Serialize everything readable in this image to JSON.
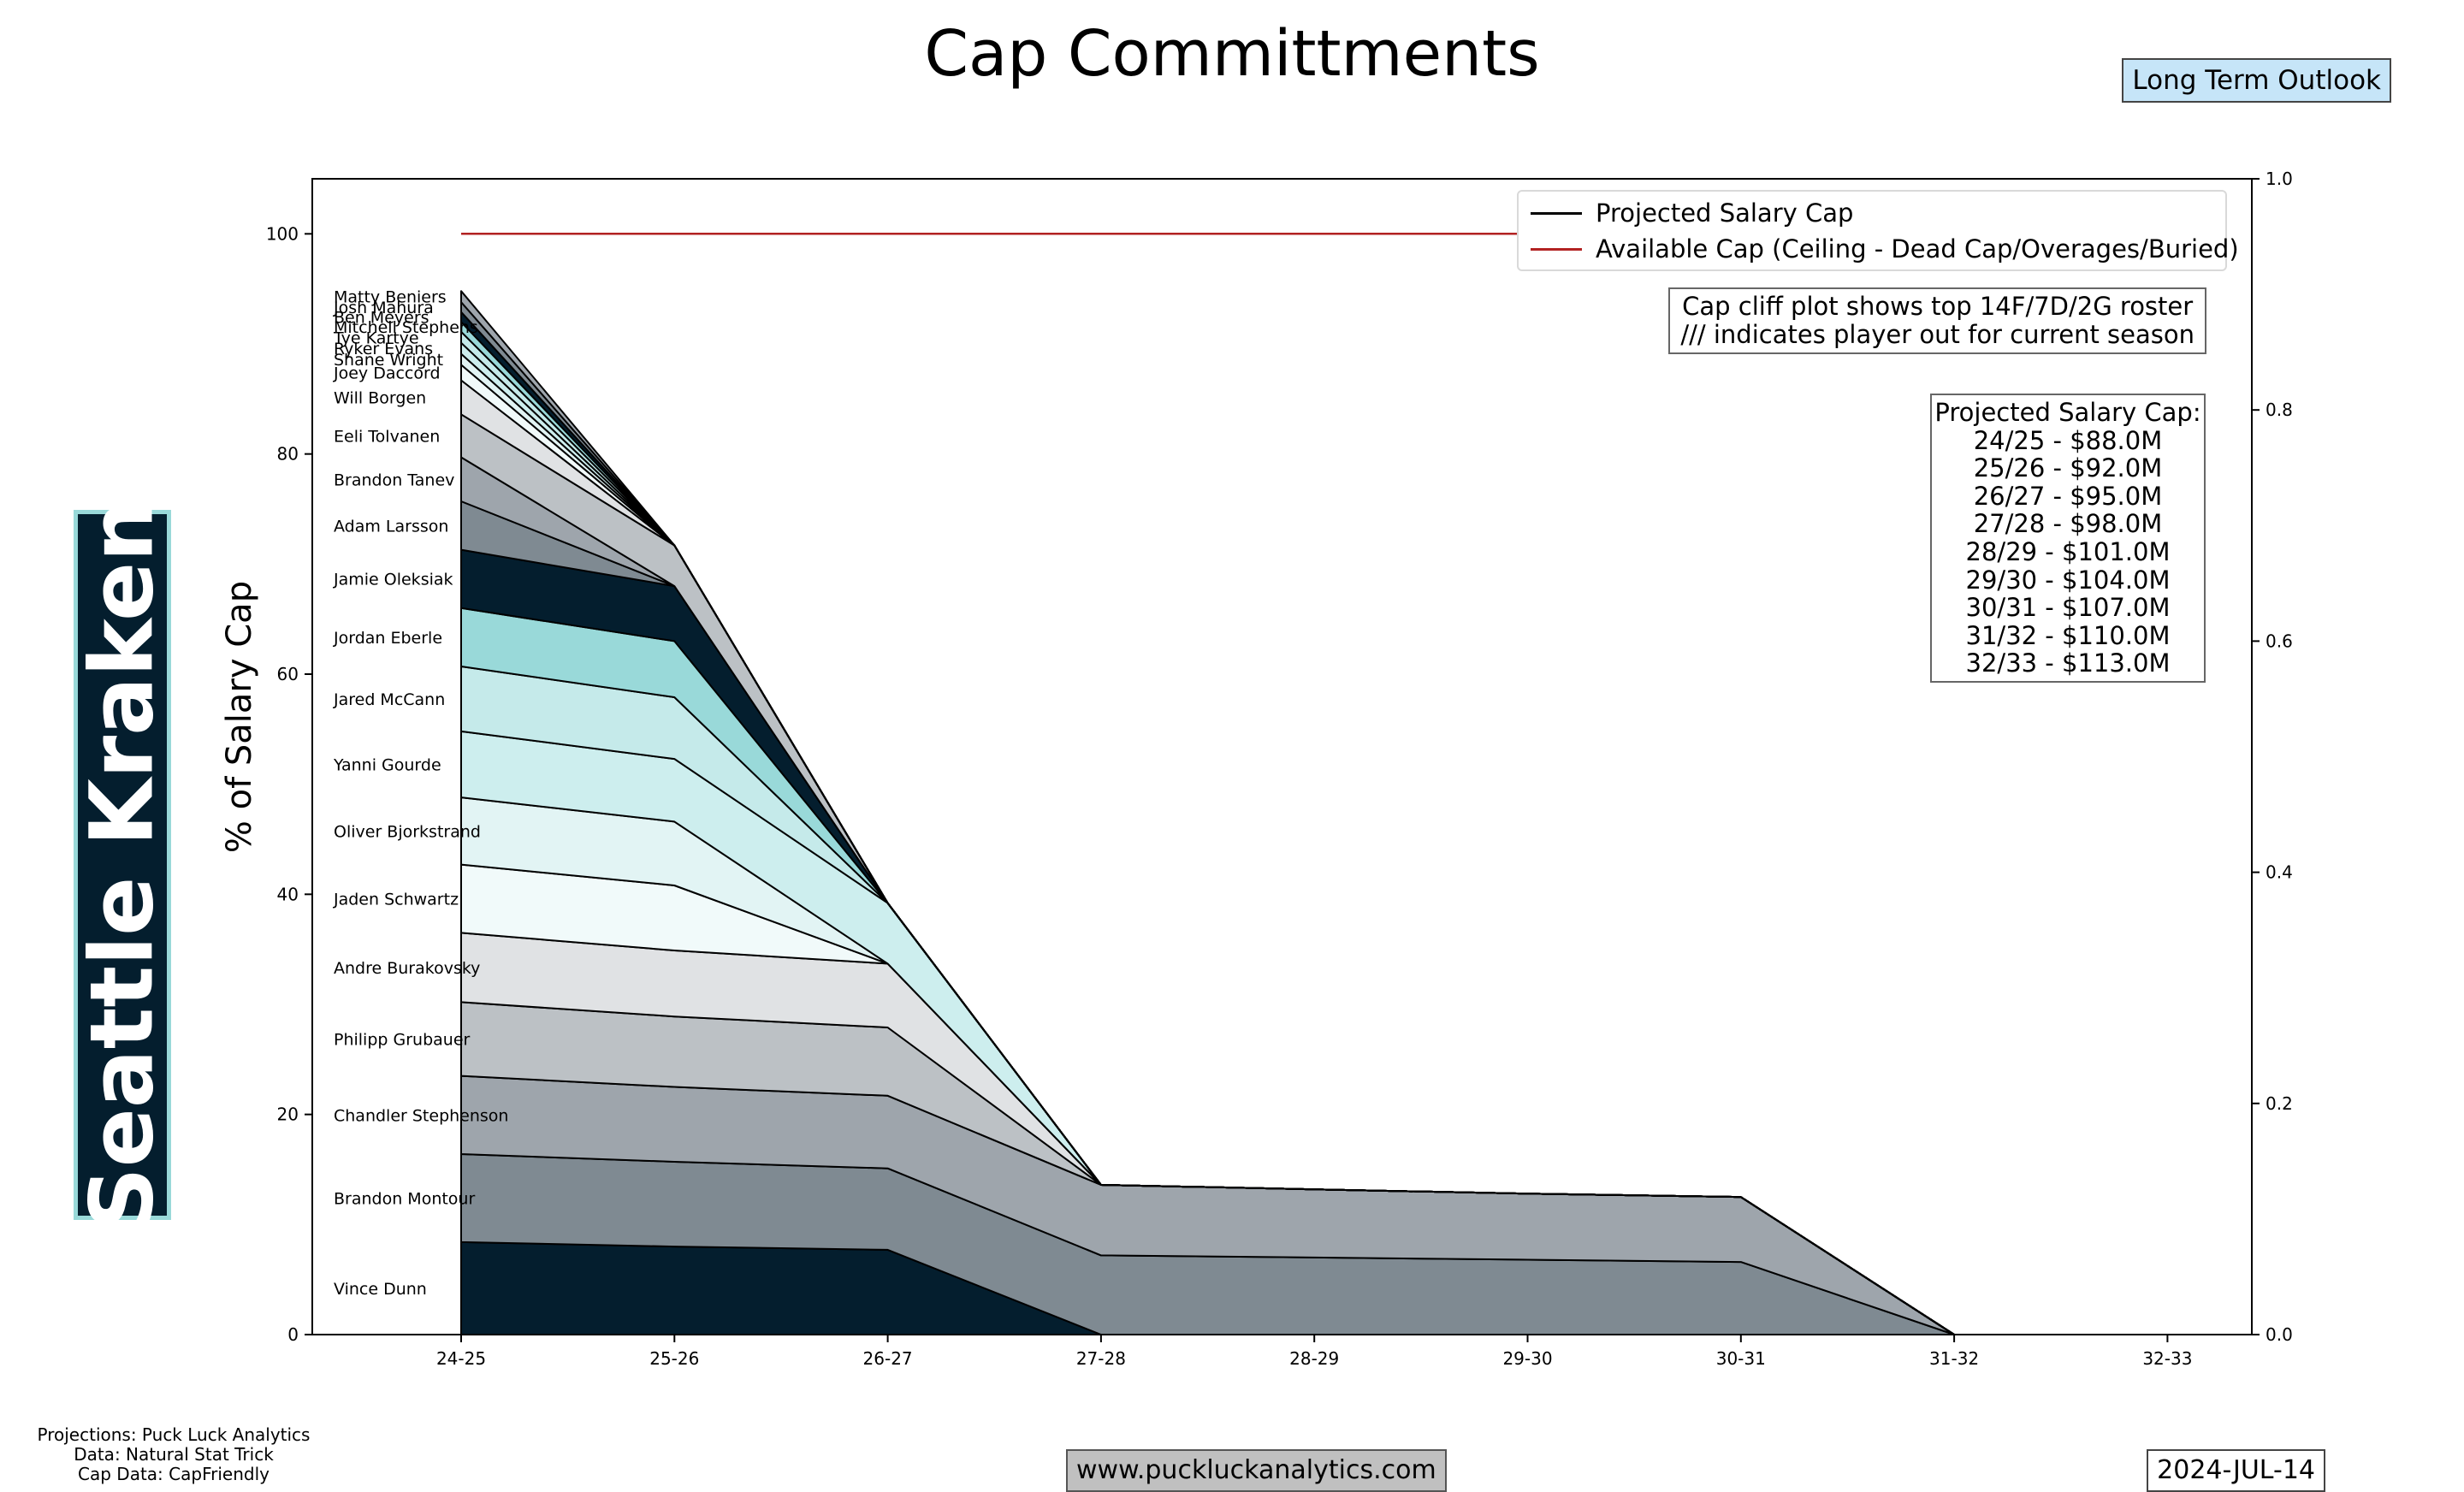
{
  "header": {
    "title": "Cap Committments",
    "outlook_badge": "Long Term Outlook"
  },
  "team": {
    "name": "Seattle Kraken"
  },
  "notes": {
    "line1": "Cap cliff plot shows top 14F/7D/2G roster",
    "line2": "/// indicates player out for current season"
  },
  "cap_projection": {
    "heading": "Projected Salary Cap:",
    "lines": [
      "24/25 - $88.0M",
      "25/26 - $92.0M",
      "26/27 - $95.0M",
      "27/28 - $98.0M",
      "28/29 - $101.0M",
      "29/30 - $104.0M",
      "30/31 - $107.0M",
      "31/32 - $110.0M",
      "32/33 - $113.0M"
    ]
  },
  "footer": {
    "credits": [
      "Projections: Puck Luck Analytics",
      "Data: Natural Stat Trick",
      "Cap Data: CapFriendly"
    ],
    "url": "www.puckluckanalytics.com",
    "date": "2024-JUL-14"
  },
  "chart_data": {
    "type": "area",
    "title": "Cap Committments",
    "ylabel": "% of Salary Cap",
    "xlabel": "",
    "categories": [
      "24-25",
      "25-26",
      "26-27",
      "27-28",
      "28-29",
      "29-30",
      "30-31",
      "31-32",
      "32-33"
    ],
    "ylim": [
      0,
      105
    ],
    "yticks": [
      0,
      20,
      40,
      60,
      80,
      100
    ],
    "y2lim": [
      0,
      1
    ],
    "y2ticks": [
      "0.0",
      "0.2",
      "0.4",
      "0.6",
      "0.8",
      "1.0"
    ],
    "grid": false,
    "legend_position": "top-right",
    "legend": [
      {
        "name": "Projected Salary Cap",
        "color": "#000000"
      },
      {
        "name": "Available Cap (Ceiling - Dead Cap/Overages/Buried)",
        "color": "#b22222"
      }
    ],
    "available_cap": [
      100,
      100,
      100,
      100,
      100,
      100,
      100,
      100,
      100
    ],
    "series": [
      {
        "name": "Vince Dunn",
        "color": "#041e2e",
        "values": [
          8.4,
          8.0,
          7.7,
          0,
          0,
          0,
          0,
          0,
          0
        ]
      },
      {
        "name": "Brandon Montour",
        "color": "#7f8a92",
        "values": [
          8.0,
          7.7,
          7.4,
          7.2,
          7.0,
          6.8,
          6.6,
          0,
          0
        ]
      },
      {
        "name": "Chandler Stephenson",
        "color": "#9ea5ac",
        "values": [
          7.1,
          6.8,
          6.6,
          6.4,
          6.2,
          6.0,
          5.9,
          0,
          0
        ]
      },
      {
        "name": "Philipp Grubauer",
        "color": "#bcc1c5",
        "values": [
          6.7,
          6.4,
          6.2,
          0,
          0,
          0,
          0,
          0,
          0
        ]
      },
      {
        "name": "Andre Burakovsky",
        "color": "#e0e2e4",
        "values": [
          6.3,
          6.0,
          5.8,
          0,
          0,
          0,
          0,
          0,
          0
        ]
      },
      {
        "name": "Jaden Schwartz",
        "color": "#f1fafa",
        "values": [
          6.2,
          5.9,
          0,
          0,
          0,
          0,
          0,
          0,
          0
        ]
      },
      {
        "name": "Oliver Bjorkstrand",
        "color": "#e2f4f4",
        "values": [
          6.1,
          5.8,
          0,
          0,
          0,
          0,
          0,
          0,
          0
        ]
      },
      {
        "name": "Yanni Gourde",
        "color": "#cdeeee",
        "values": [
          6.0,
          5.7,
          5.5,
          0,
          0,
          0,
          0,
          0,
          0
        ]
      },
      {
        "name": "Jared McCann",
        "color": "#c5eaea",
        "values": [
          5.9,
          5.6,
          0,
          0,
          0,
          0,
          0,
          0,
          0
        ]
      },
      {
        "name": "Jordan Eberle",
        "color": "#99d9d9",
        "values": [
          5.3,
          5.1,
          0,
          0,
          0,
          0,
          0,
          0,
          0
        ]
      },
      {
        "name": "Jamie Oleksiak",
        "color": "#041e2e",
        "values": [
          5.3,
          5.0,
          0,
          0,
          0,
          0,
          0,
          0,
          0
        ]
      },
      {
        "name": "Adam Larsson",
        "color": "#7f8a92",
        "values": [
          4.4,
          0,
          0,
          0,
          0,
          0,
          0,
          0,
          0
        ]
      },
      {
        "name": "Brandon Tanev",
        "color": "#9ea5ac",
        "values": [
          4.0,
          0,
          0,
          0,
          0,
          0,
          0,
          0,
          0
        ]
      },
      {
        "name": "Eeli Tolvanen",
        "color": "#bcc1c5",
        "values": [
          3.9,
          3.7,
          0,
          0,
          0,
          0,
          0,
          0,
          0
        ]
      },
      {
        "name": "Will Borgen",
        "color": "#e0e2e4",
        "values": [
          3.1,
          0,
          0,
          0,
          0,
          0,
          0,
          0,
          0
        ]
      },
      {
        "name": "Joey Daccord",
        "color": "#f1fafa",
        "values": [
          1.4,
          0,
          0,
          0,
          0,
          0,
          0,
          0,
          0
        ]
      },
      {
        "name": "Shane Wright",
        "color": "#e2f4f4",
        "values": [
          1.0,
          0,
          0,
          0,
          0,
          0,
          0,
          0,
          0
        ]
      },
      {
        "name": "Ryker Evans",
        "color": "#cdeeee",
        "values": [
          1.0,
          0,
          0,
          0,
          0,
          0,
          0,
          0,
          0
        ]
      },
      {
        "name": "Tye Kartye",
        "color": "#c5eaea",
        "values": [
          1.0,
          0,
          0,
          0,
          0,
          0,
          0,
          0,
          0
        ]
      },
      {
        "name": "Mitchell Stephens",
        "color": "#99d9d9",
        "values": [
          0.9,
          0,
          0,
          0,
          0,
          0,
          0,
          0,
          0
        ]
      },
      {
        "name": "Ben Meyers",
        "color": "#041e2e",
        "values": [
          0.9,
          0,
          0,
          0,
          0,
          0,
          0,
          0,
          0
        ]
      },
      {
        "name": "Josh Mahura",
        "color": "#7f8a92",
        "values": [
          0.9,
          0,
          0,
          0,
          0,
          0,
          0,
          0,
          0
        ]
      },
      {
        "name": "Matty Beniers",
        "color": "#9ea5ac",
        "values": [
          1.0,
          0,
          0,
          0,
          0,
          0,
          0,
          0,
          0
        ]
      }
    ],
    "label_stack_index": 0
  }
}
